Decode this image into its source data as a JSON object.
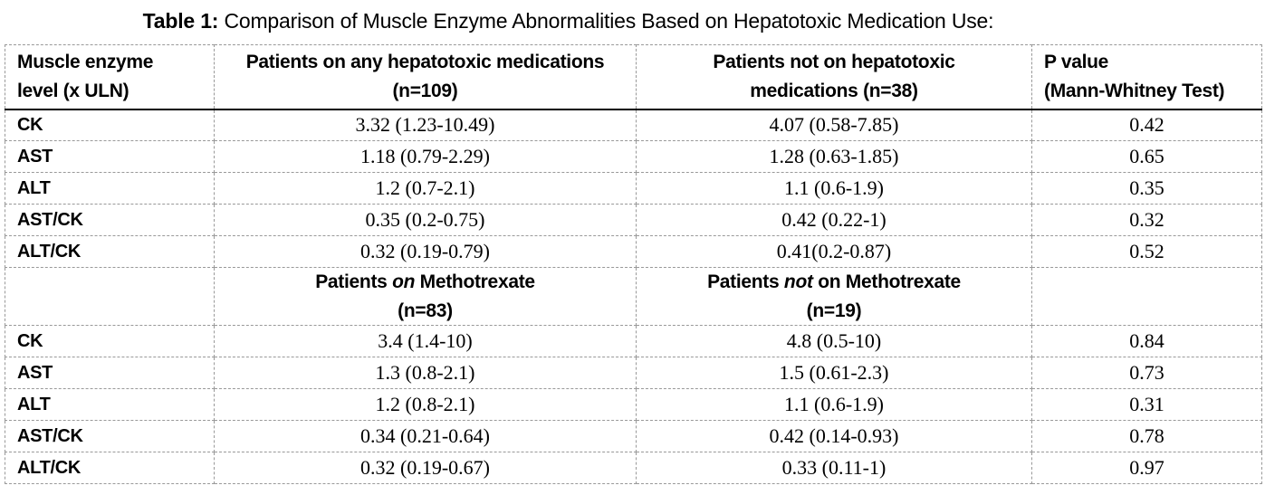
{
  "title": {
    "prefix": "Table 1:",
    "text": "Comparison of Muscle Enzyme Abnormalities Based on Hepatotoxic Medication Use:"
  },
  "table": {
    "header": {
      "col1": {
        "line1": "Muscle enzyme",
        "line2": "level (x ULN)"
      },
      "col2": {
        "line1": "Patients on any hepatotoxic medications",
        "line2": "(n=109)"
      },
      "col3": {
        "line1": "Patients not on hepatotoxic",
        "line2": "medications (n=38)"
      },
      "col4": {
        "line1": "P value",
        "line2": "(Mann-Whitney Test)"
      }
    },
    "sections": [
      {
        "rows": [
          {
            "enzyme": "CK",
            "col2": "3.32 (1.23-10.49)",
            "col3": "4.07 (0.58-7.85)",
            "p": "0.42"
          },
          {
            "enzyme": "AST",
            "col2": "1.18 (0.79-2.29)",
            "col3": "1.28 (0.63-1.85)",
            "p": "0.65"
          },
          {
            "enzyme": "ALT",
            "col2": "1.2 (0.7-2.1)",
            "col3": "1.1 (0.6-1.9)",
            "p": "0.35"
          },
          {
            "enzyme": "AST/CK",
            "col2": "0.35 (0.2-0.75)",
            "col3": "0.42 (0.22-1)",
            "p": "0.32"
          },
          {
            "enzyme": "ALT/CK",
            "col2": "0.32 (0.19-0.79)",
            "col3": "0.41(0.2-0.87)",
            "p": "0.52"
          }
        ]
      },
      {
        "header": {
          "col2": {
            "pre": "Patients",
            "emph": "on",
            "post": "Methotrexate",
            "n": "(n=83)"
          },
          "col3": {
            "pre": "Patients",
            "emph": "not",
            "post": "on Methotrexate",
            "n": "(n=19)"
          }
        },
        "rows": [
          {
            "enzyme": "CK",
            "col2": "3.4 (1.4-10)",
            "col3": "4.8 (0.5-10)",
            "p": "0.84"
          },
          {
            "enzyme": "AST",
            "col2": "1.3 (0.8-2.1)",
            "col3": "1.5 (0.61-2.3)",
            "p": "0.73"
          },
          {
            "enzyme": "ALT",
            "col2": "1.2 (0.8-2.1)",
            "col3": "1.1 (0.6-1.9)",
            "p": "0.31"
          },
          {
            "enzyme": "AST/CK",
            "col2": "0.34 (0.21-0.64)",
            "col3": "0.42 (0.14-0.93)",
            "p": "0.78"
          },
          {
            "enzyme": "ALT/CK",
            "col2": "0.32 (0.19-0.67)",
            "col3": "0.33 (0.11-1)",
            "p": "0.97"
          }
        ]
      }
    ],
    "colors": {
      "grid_border": "#999999",
      "header_underline": "#000000",
      "text": "#000000",
      "background": "#ffffff"
    }
  }
}
